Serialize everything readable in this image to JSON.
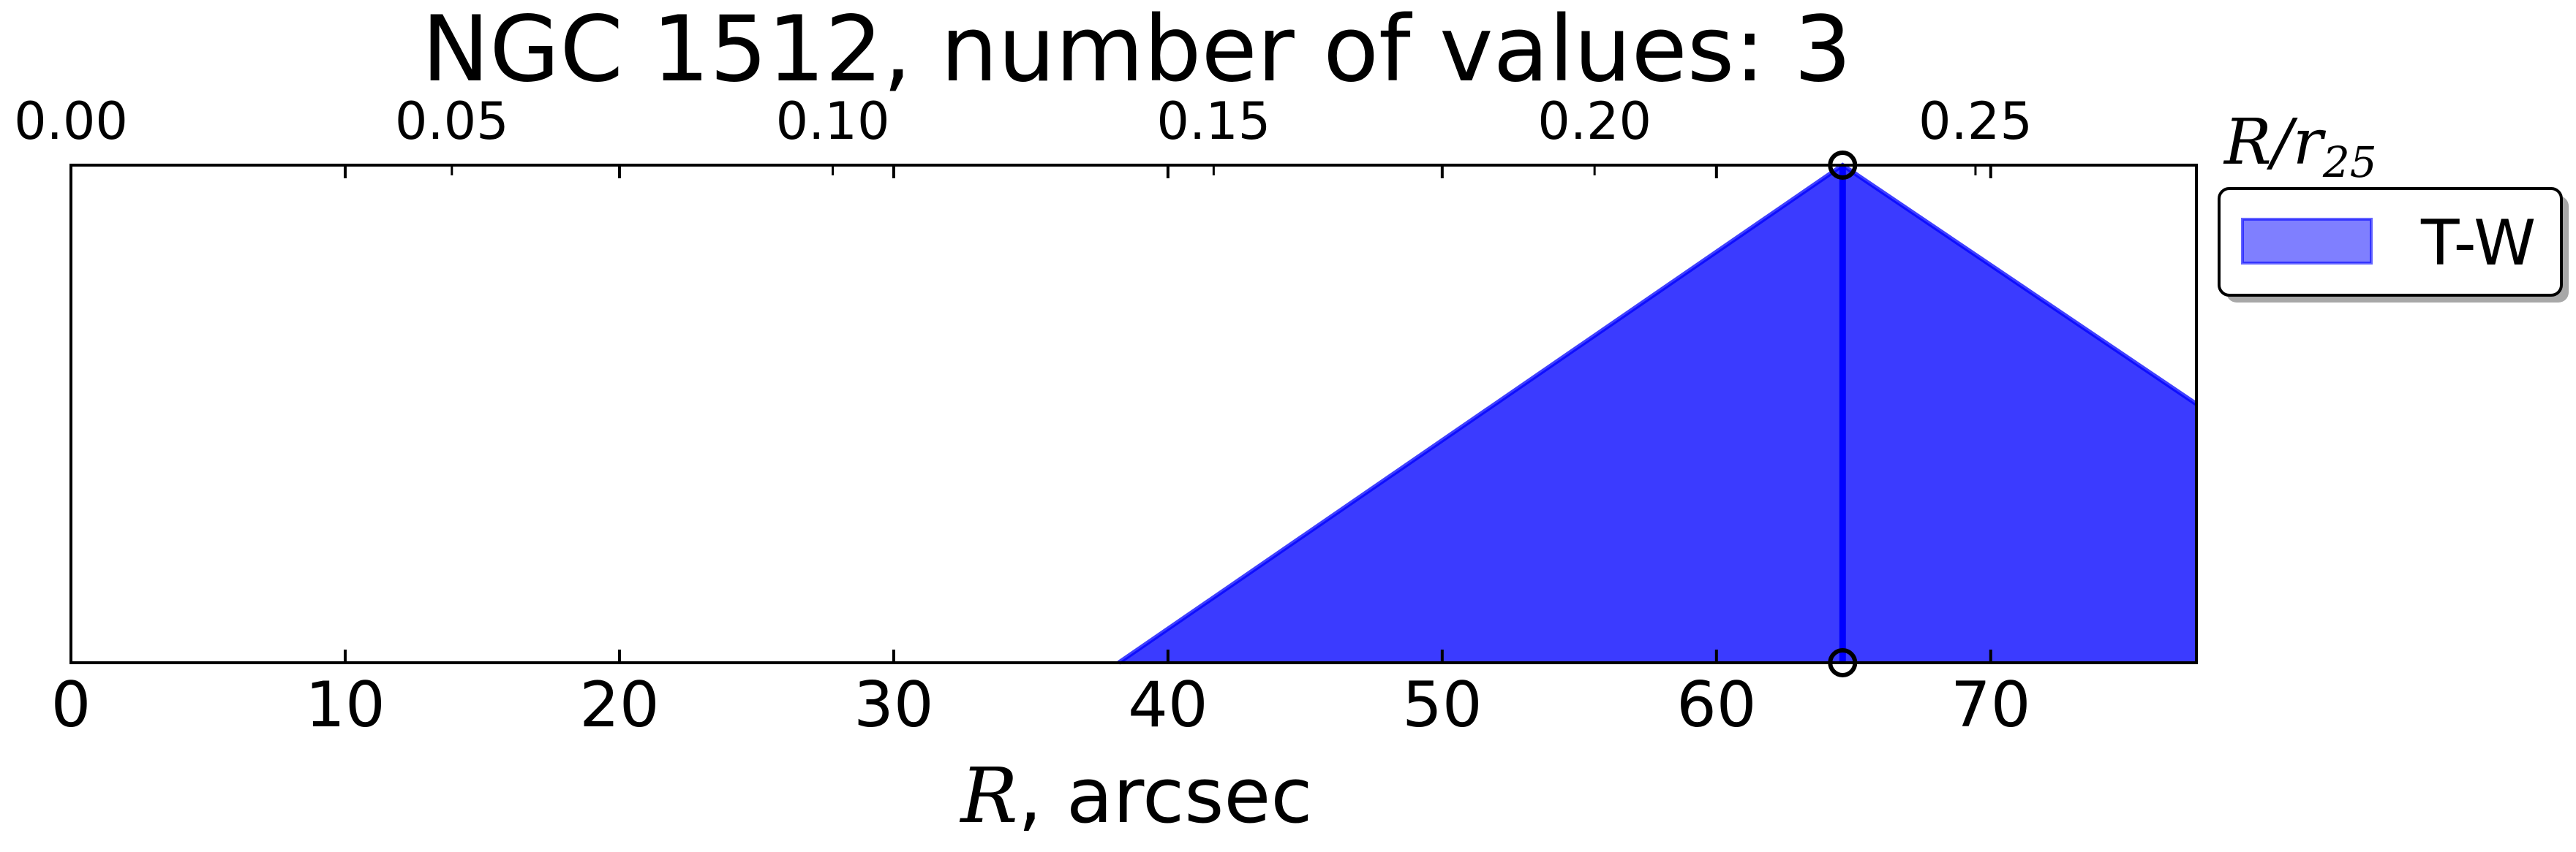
{
  "chart_data": {
    "type": "area",
    "title": "NGC 1512, number of values: 3",
    "xlabel": "R, arcsec",
    "xlabel_math": "R",
    "xlabel_rest": ", arcsec",
    "x2label": "R/r25",
    "x2label_base": "R/r",
    "x2label_sub": "25",
    "xlim": [
      0,
      77.5
    ],
    "x2lim": [
      0,
      0.279
    ],
    "x_ticks": [
      0,
      10,
      20,
      30,
      40,
      50,
      60,
      70
    ],
    "x_tick_labels": [
      "0",
      "10",
      "20",
      "30",
      "40",
      "50",
      "60",
      "70"
    ],
    "x2_ticks": [
      0.0,
      0.05,
      0.1,
      0.15,
      0.2,
      0.25
    ],
    "x2_tick_labels": [
      "0.00",
      "0.05",
      "0.10",
      "0.15",
      "0.20",
      "0.25"
    ],
    "ylim": [
      0,
      1
    ],
    "y_ticks_visible": false,
    "grid": false,
    "legend_position": "outside-right-top",
    "series": [
      {
        "name": "T-W",
        "color": "#0000ff",
        "fill_alpha": 0.77,
        "legend_alpha": 0.5,
        "x": [
          38.2,
          64.6,
          77.5
        ],
        "y": [
          0,
          1,
          0.52
        ]
      }
    ],
    "markers": [
      {
        "x": 64.6,
        "y": 1
      },
      {
        "x": 64.6,
        "y": 0
      }
    ],
    "vline_x": 64.6
  }
}
